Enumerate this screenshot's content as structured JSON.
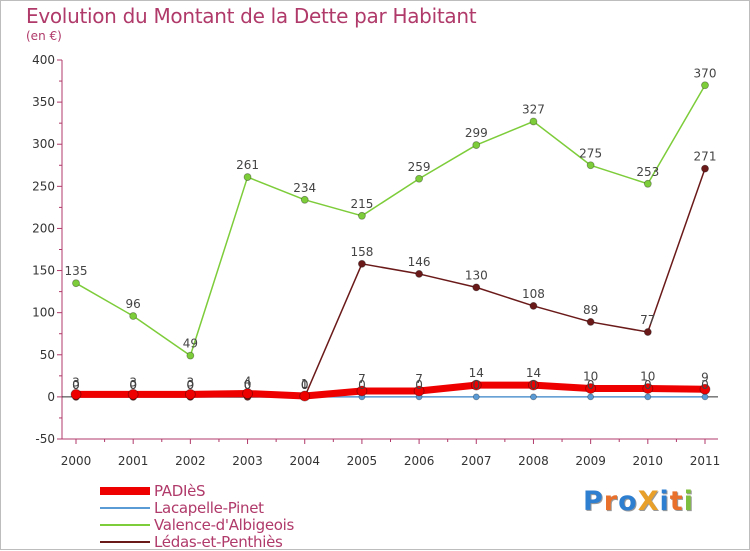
{
  "title": "Evolution du Montant de la Dette par Habitant",
  "unit": "(en €)",
  "logo": {
    "text": "ProXiti",
    "letters": [
      "P",
      "r",
      "o",
      "X",
      "i",
      "t",
      "i"
    ],
    "colors": [
      "#2f7fd0",
      "#e8702a",
      "#2f7fd0",
      "#e8a02a",
      "#2f7fd0",
      "#e8702a",
      "#7fbf3f"
    ]
  },
  "chart_data": {
    "type": "line",
    "x": [
      "2000",
      "2001",
      "2002",
      "2003",
      "2004",
      "2005",
      "2006",
      "2007",
      "2008",
      "2009",
      "2010",
      "2011"
    ],
    "ylim": [
      -50,
      400
    ],
    "yticks": [
      "-50",
      "0",
      "50",
      "100",
      "150",
      "200",
      "250",
      "300",
      "350",
      "400"
    ],
    "grid": false,
    "legend_placement": "bottom-left",
    "series": [
      {
        "name": "PADIèS",
        "color": "#ee0000",
        "values": [
          3,
          3,
          3,
          4,
          1,
          7,
          7,
          14,
          14,
          10,
          10,
          9
        ]
      },
      {
        "name": "Lacapelle-Pinet",
        "color": "#5b9bd5",
        "values": [
          0,
          0,
          0,
          0,
          0,
          0,
          0,
          0,
          0,
          0,
          0,
          0
        ]
      },
      {
        "name": "Valence-d'Albigeois",
        "color": "#7dcc3a",
        "values": [
          135,
          96,
          49,
          261,
          234,
          215,
          259,
          299,
          327,
          275,
          253,
          370
        ]
      },
      {
        "name": "Lédas-et-Penthiès",
        "color": "#6b1a1a",
        "values": [
          0,
          0,
          0,
          0,
          0,
          158,
          146,
          130,
          108,
          89,
          77,
          271
        ]
      }
    ]
  }
}
